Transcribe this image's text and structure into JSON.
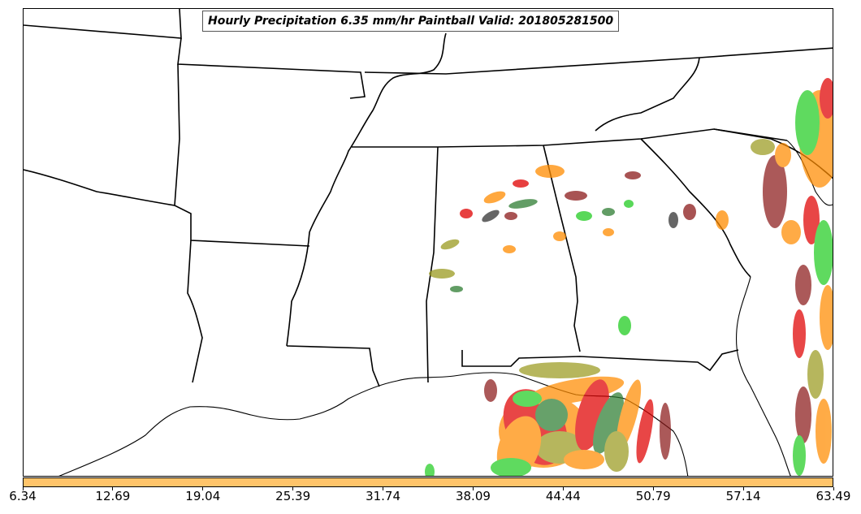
{
  "title": "Hourly Precipitation 6.35 mm/hr Paintball Valid: 201805281500",
  "colorbar": {
    "color": "#ffc46a",
    "ticks": [
      "6.34",
      "12.69",
      "19.04",
      "25.39",
      "31.74",
      "38.09",
      "44.44",
      "50.79",
      "57.14",
      "63.49"
    ]
  },
  "member_colors": [
    "#e00000",
    "#ff8c00",
    "#22cc22",
    "#8b1a1a",
    "#2e7d32",
    "#9a9a20",
    "#333333"
  ]
}
